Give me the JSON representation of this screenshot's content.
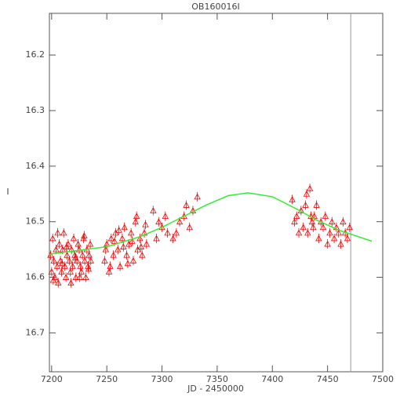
{
  "chart_data": {
    "type": "scatter",
    "title": "OB160016I",
    "x_label": "JD - 2450000",
    "y_label": "I",
    "xlim": [
      7198,
      7500
    ],
    "xticks": [
      7200,
      7250,
      7300,
      7350,
      7400,
      7450,
      7500
    ],
    "ylim": [
      16.125,
      16.77
    ],
    "y_inverted": true,
    "yticks": [
      16.2,
      16.3,
      16.4,
      16.5,
      16.6,
      16.7
    ],
    "color": "#ff0000",
    "x": [
      7199,
      7200,
      7201,
      7202,
      7203,
      7204,
      7205,
      7206,
      7207,
      7208,
      7209,
      7210,
      7211,
      7212,
      7213,
      7214,
      7215,
      7216,
      7217,
      7218,
      7219,
      7220,
      7221,
      7222,
      7223,
      7224,
      7225,
      7226,
      7227,
      7228,
      7229,
      7230,
      7231,
      7232,
      7233,
      7234,
      7235,
      7201.5,
      7205.5,
      7209.5,
      7213.5,
      7217.5,
      7221.5,
      7225.5,
      7229.5,
      7233.5,
      7235.5,
      7248,
      7250,
      7252,
      7254,
      7256,
      7258,
      7260,
      7262,
      7264,
      7266,
      7268,
      7270,
      7272,
      7274,
      7276,
      7278,
      7280,
      7282,
      7284,
      7286,
      7249,
      7253,
      7257,
      7261,
      7265,
      7269,
      7273,
      7277,
      7281,
      7285,
      7292,
      7295,
      7297,
      7300,
      7303,
      7305,
      7310,
      7313,
      7316,
      7320,
      7322,
      7325,
      7328,
      7332,
      7418,
      7420,
      7422,
      7424,
      7426,
      7428,
      7430,
      7432,
      7434,
      7436,
      7438,
      7440,
      7442,
      7444,
      7446,
      7448,
      7450,
      7452,
      7454,
      7456,
      7458,
      7460,
      7462,
      7464,
      7466,
      7468,
      7470,
      7431,
      7435,
      7437
    ],
    "values": [
      16.56,
      16.59,
      16.53,
      16.57,
      16.6,
      16.55,
      16.58,
      16.61,
      16.54,
      16.57,
      16.59,
      16.55,
      16.52,
      16.58,
      16.6,
      16.56,
      16.54,
      16.57,
      16.59,
      16.55,
      16.58,
      16.53,
      16.56,
      16.6,
      16.57,
      16.54,
      16.55,
      16.58,
      16.59,
      16.56,
      16.53,
      16.57,
      16.6,
      16.55,
      16.58,
      16.56,
      16.54,
      16.605,
      16.52,
      16.575,
      16.545,
      16.61,
      16.565,
      16.6,
      16.525,
      16.585,
      16.57,
      16.57,
      16.54,
      16.59,
      16.53,
      16.56,
      16.52,
      16.55,
      16.58,
      16.53,
      16.51,
      16.56,
      16.54,
      16.52,
      16.57,
      16.5,
      16.55,
      16.53,
      16.56,
      16.52,
      16.54,
      16.55,
      16.58,
      16.535,
      16.515,
      16.545,
      16.575,
      16.535,
      16.49,
      16.545,
      16.505,
      16.48,
      16.53,
      16.5,
      16.51,
      16.49,
      16.52,
      16.53,
      16.52,
      16.5,
      16.49,
      16.47,
      16.51,
      16.48,
      16.455,
      16.46,
      16.5,
      16.49,
      16.52,
      16.48,
      16.51,
      16.47,
      16.52,
      16.44,
      16.5,
      16.49,
      16.47,
      16.53,
      16.5,
      16.51,
      16.49,
      16.54,
      16.52,
      16.5,
      16.53,
      16.51,
      16.52,
      16.54,
      16.5,
      16.52,
      16.53,
      16.51,
      16.45,
      16.49,
      16.51
    ],
    "model": {
      "color": "#33ee33",
      "x": [
        7198,
        7200,
        7250,
        7280,
        7300,
        7320,
        7340,
        7360,
        7378,
        7400,
        7420,
        7440,
        7460,
        7490
      ],
      "values": [
        16.559,
        16.558,
        16.545,
        16.527,
        16.51,
        16.49,
        16.47,
        16.453,
        16.448,
        16.455,
        16.475,
        16.497,
        16.515,
        16.535
      ]
    },
    "vline": 7471,
    "vline_color": "#999999"
  }
}
